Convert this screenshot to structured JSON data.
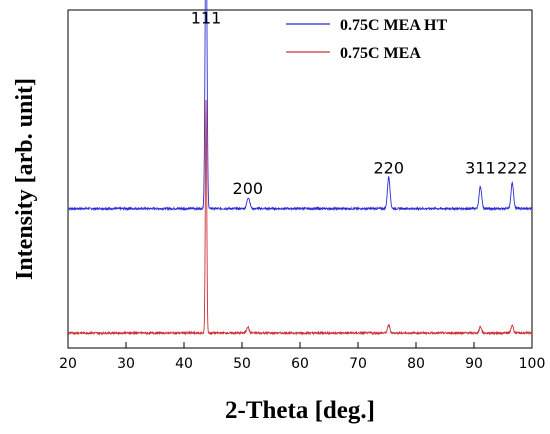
{
  "chart_data": {
    "type": "line",
    "xlabel": "2-Theta [deg.]",
    "ylabel": "Intensity [arb. unit]",
    "xlim": [
      20,
      100
    ],
    "x_ticks": [
      "20",
      "30",
      "40",
      "50",
      "60",
      "70",
      "80",
      "90",
      "100"
    ],
    "y_tick_labels": false,
    "grid": false,
    "legend_position": "top-right",
    "series": [
      {
        "name": "0.75C MEA HT",
        "color": "#2b2bd6",
        "baseline": 0.39,
        "peaks": [
          {
            "x": 43.8,
            "height": 0.95,
            "width": 0.16
          },
          {
            "x": 51.1,
            "height": 0.035,
            "width": 0.25
          },
          {
            "x": 75.3,
            "height": 0.1,
            "width": 0.22
          },
          {
            "x": 91.1,
            "height": 0.07,
            "width": 0.22
          },
          {
            "x": 96.6,
            "height": 0.08,
            "width": 0.22
          }
        ]
      },
      {
        "name": "0.75C MEA",
        "color": "#cc3030",
        "baseline": 0.0,
        "peaks": [
          {
            "x": 43.8,
            "height": 0.73,
            "width": 0.12
          },
          {
            "x": 51.0,
            "height": 0.02,
            "width": 0.2
          },
          {
            "x": 75.3,
            "height": 0.025,
            "width": 0.2
          },
          {
            "x": 91.1,
            "height": 0.02,
            "width": 0.2
          },
          {
            "x": 96.6,
            "height": 0.025,
            "width": 0.2
          }
        ]
      }
    ],
    "annotations": [
      {
        "text": "111",
        "x": 43.8,
        "y": 0.97
      },
      {
        "text": "200",
        "x": 51.0,
        "y": 0.435
      },
      {
        "text": "220",
        "x": 75.3,
        "y": 0.5
      },
      {
        "text": "311",
        "x": 91.1,
        "y": 0.5
      },
      {
        "text": "222",
        "x": 96.6,
        "y": 0.5
      }
    ]
  }
}
